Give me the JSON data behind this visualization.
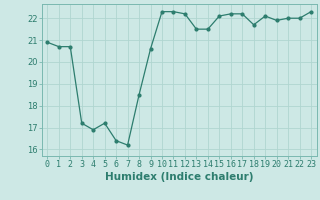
{
  "x": [
    0,
    1,
    2,
    3,
    4,
    5,
    6,
    7,
    8,
    9,
    10,
    11,
    12,
    13,
    14,
    15,
    16,
    17,
    18,
    19,
    20,
    21,
    22,
    23
  ],
  "y": [
    20.9,
    20.7,
    20.7,
    17.2,
    16.9,
    17.2,
    16.4,
    16.2,
    18.5,
    20.6,
    22.3,
    22.3,
    22.2,
    21.5,
    21.5,
    22.1,
    22.2,
    22.2,
    21.7,
    22.1,
    21.9,
    22.0,
    22.0,
    22.3
  ],
  "line_color": "#2d7d6e",
  "marker": "o",
  "markersize": 2.0,
  "linewidth": 0.9,
  "bg_color": "#cde8e5",
  "grid_color": "#b0d5d0",
  "xlabel": "Humidex (Indice chaleur)",
  "ylim": [
    15.7,
    22.65
  ],
  "xlim": [
    -0.5,
    23.5
  ],
  "yticks": [
    16,
    17,
    18,
    19,
    20,
    21,
    22
  ],
  "xticks": [
    0,
    1,
    2,
    3,
    4,
    5,
    6,
    7,
    8,
    9,
    10,
    11,
    12,
    13,
    14,
    15,
    16,
    17,
    18,
    19,
    20,
    21,
    22,
    23
  ],
  "tick_color": "#2d7d6e",
  "xlabel_fontsize": 7.5,
  "tick_fontsize": 6.0,
  "spine_color": "#7ab8b0"
}
